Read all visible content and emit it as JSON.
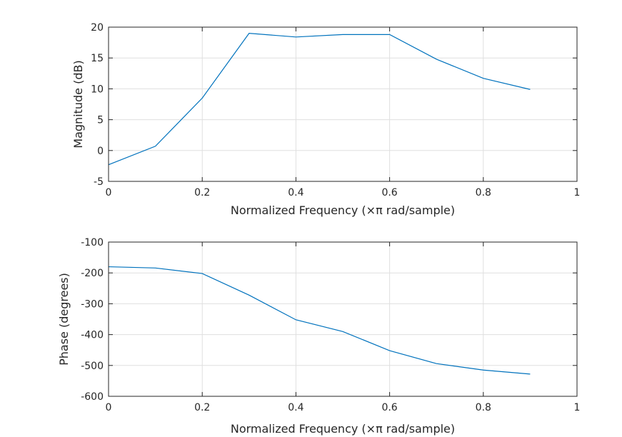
{
  "chart_data": [
    {
      "type": "line",
      "title": "",
      "xlabel": "Normalized Frequency  (×π rad/sample)",
      "ylabel": "Magnitude (dB)",
      "xlim": [
        0,
        1
      ],
      "ylim": [
        -5,
        20
      ],
      "xticks": [
        0,
        0.2,
        0.4,
        0.6,
        0.8,
        1
      ],
      "xtick_labels": [
        "0",
        "0.2",
        "0.4",
        "0.6",
        "0.8",
        "1"
      ],
      "yticks": [
        -5,
        0,
        5,
        10,
        15,
        20
      ],
      "ytick_labels": [
        "-5",
        "0",
        "5",
        "10",
        "15",
        "20"
      ],
      "grid": true,
      "legend": "none",
      "series": [
        {
          "color": "#0072bd",
          "x": [
            0,
            0.1,
            0.2,
            0.3,
            0.4,
            0.5,
            0.6,
            0.7,
            0.8,
            0.9
          ],
          "y": [
            -2.3,
            0.7,
            8.5,
            19.0,
            18.4,
            18.8,
            18.8,
            14.8,
            11.7,
            9.9
          ]
        }
      ]
    },
    {
      "type": "line",
      "title": "",
      "xlabel": "Normalized Frequency  (×π rad/sample)",
      "ylabel": "Phase (degrees)",
      "xlim": [
        0,
        1
      ],
      "ylim": [
        -600,
        -100
      ],
      "xticks": [
        0,
        0.2,
        0.4,
        0.6,
        0.8,
        1
      ],
      "xtick_labels": [
        "0",
        "0.2",
        "0.4",
        "0.6",
        "0.8",
        "1"
      ],
      "yticks": [
        -600,
        -500,
        -400,
        -300,
        -200,
        -100
      ],
      "ytick_labels": [
        "-600",
        "-500",
        "-400",
        "-300",
        "-200",
        "-100"
      ],
      "grid": true,
      "legend": "none",
      "series": [
        {
          "color": "#0072bd",
          "x": [
            0,
            0.1,
            0.2,
            0.3,
            0.4,
            0.5,
            0.6,
            0.7,
            0.8,
            0.9
          ],
          "y": [
            -180,
            -184,
            -202,
            -272,
            -352,
            -390,
            -452,
            -494,
            -515,
            -528
          ]
        }
      ]
    }
  ]
}
